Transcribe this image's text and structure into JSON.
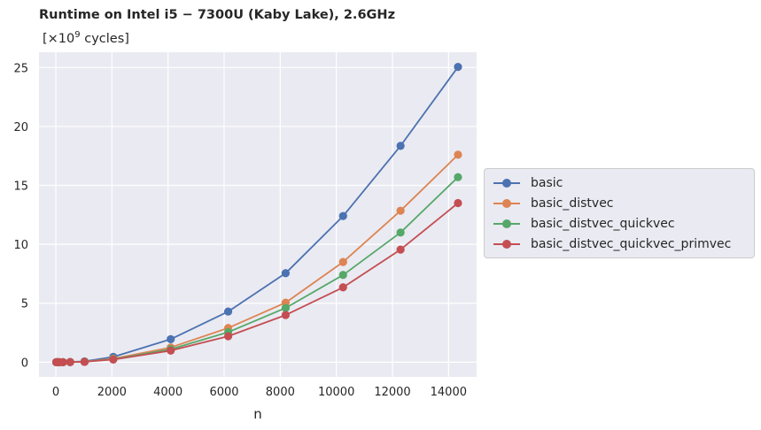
{
  "chart_data": {
    "type": "line",
    "title": "Runtime on Intel i5 − 7300U (Kaby Lake), 2.6GHz",
    "unit_label_prefix": "[×10",
    "unit_label_exponent": "9",
    "unit_label_suffix": " cycles]",
    "xlabel": "n",
    "ylabel": "",
    "xlim": [
      -600,
      15000
    ],
    "ylim": [
      -1.25,
      26.3
    ],
    "x_ticks": [
      0,
      2000,
      4000,
      6000,
      8000,
      10000,
      12000,
      14000
    ],
    "y_ticks": [
      0,
      5,
      10,
      15,
      20,
      25
    ],
    "grid": true,
    "legend_position": "center-right outside",
    "x": [
      16,
      64,
      128,
      256,
      512,
      1024,
      2048,
      4096,
      6144,
      8192,
      10240,
      12288,
      14336
    ],
    "series": [
      {
        "name": "basic",
        "color": "#4c72b0",
        "values": [
          0.0,
          0.0,
          0.0,
          0.0,
          0.02,
          0.07,
          0.45,
          1.95,
          4.3,
          7.55,
          12.4,
          18.35,
          25.05
        ]
      },
      {
        "name": "basic_distvec",
        "color": "#dd8452",
        "values": [
          0.0,
          0.0,
          0.0,
          0.0,
          0.01,
          0.04,
          0.3,
          1.25,
          2.9,
          5.05,
          8.5,
          12.85,
          17.6
        ]
      },
      {
        "name": "basic_distvec_quickvec",
        "color": "#55a868",
        "values": [
          0.0,
          0.0,
          0.0,
          0.0,
          0.01,
          0.03,
          0.25,
          1.1,
          2.55,
          4.6,
          7.4,
          11.0,
          15.7
        ]
      },
      {
        "name": "basic_distvec_quickvec_primvec",
        "color": "#c44e52",
        "values": [
          0.0,
          0.0,
          0.0,
          0.0,
          0.01,
          0.03,
          0.22,
          0.98,
          2.2,
          4.0,
          6.35,
          9.55,
          13.5
        ]
      }
    ]
  }
}
